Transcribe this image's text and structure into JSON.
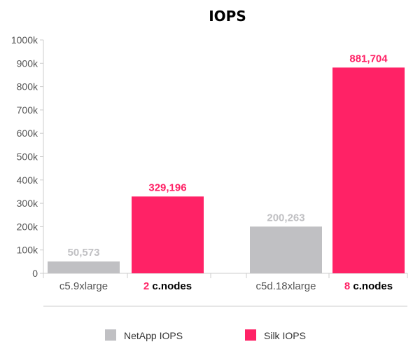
{
  "chart_data": {
    "type": "bar",
    "title": "IOPS",
    "ylim": [
      0,
      1000000
    ],
    "yticks": [
      "0",
      "100k",
      "200k",
      "300k",
      "400k",
      "500k",
      "600k",
      "700k",
      "800k",
      "900k",
      "1000k"
    ],
    "bars": [
      {
        "group": 0,
        "series": "NetApp IOPS",
        "label": "c5.9xlarge",
        "value": 50573,
        "value_label": "50,573"
      },
      {
        "group": 0,
        "series": "Silk IOPS",
        "label_num": "2",
        "label_text": " c.nodes",
        "value": 329196,
        "value_label": "329,196"
      },
      {
        "group": 1,
        "series": "NetApp IOPS",
        "label": "c5d.18xlarge",
        "value": 200263,
        "value_label": "200,263"
      },
      {
        "group": 1,
        "series": "Silk IOPS",
        "label_num": "8",
        "label_text": " c.nodes",
        "value": 881704,
        "value_label": "881,704"
      }
    ],
    "series": [
      {
        "name": "NetApp IOPS",
        "color": "#c0c0c3"
      },
      {
        "name": "Silk IOPS",
        "color": "#ff2266"
      }
    ],
    "legend": "bottom",
    "grid": false
  }
}
